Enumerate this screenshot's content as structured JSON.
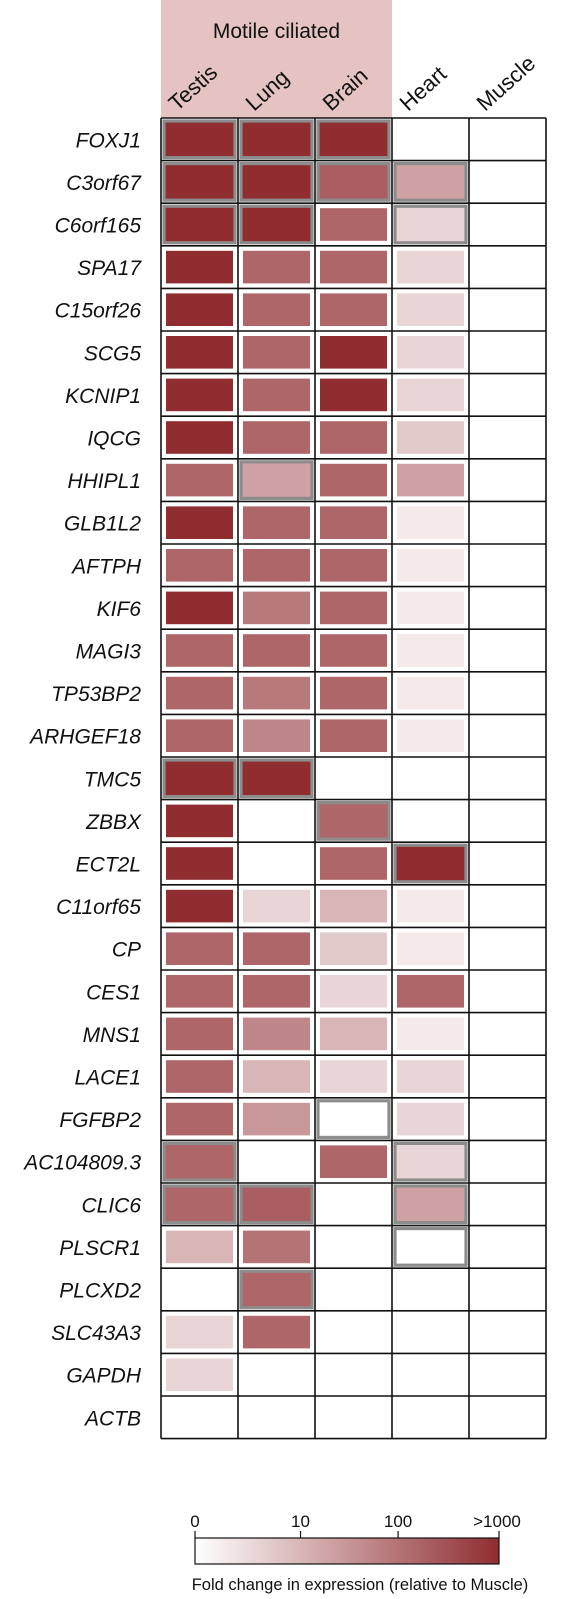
{
  "chart_data": {
    "type": "heatmap",
    "group_label": "Motile ciliated",
    "group_columns": [
      "Testis",
      "Lung",
      "Brain"
    ],
    "columns": [
      "Testis",
      "Lung",
      "Brain",
      "Heart",
      "Muscle"
    ],
    "rows": [
      "FOXJ1",
      "C3orf67",
      "C6orf165",
      "SPA17",
      "C15orf26",
      "SCG5",
      "KCNIP1",
      "IQCG",
      "HHIPL1",
      "GLB1L2",
      "AFTPH",
      "KIF6",
      "MAGI3",
      "TP53BP2",
      "ARHGEF18",
      "TMC5",
      "ZBBX",
      "ECT2L",
      "C11orf65",
      "CP",
      "CES1",
      "MNS1",
      "LACE1",
      "FGFBP2",
      "AC104809.3",
      "CLIC6",
      "PLSCR1",
      "PLCXD2",
      "SLC43A3",
      "GAPDH",
      "ACTB"
    ],
    "values": [
      [
        2000,
        2000,
        2000,
        0,
        0
      ],
      [
        2000,
        2000,
        200,
        20,
        0
      ],
      [
        2000,
        2000,
        150,
        3,
        0
      ],
      [
        2000,
        150,
        150,
        3,
        0
      ],
      [
        2000,
        150,
        150,
        3,
        0
      ],
      [
        2000,
        150,
        2000,
        3,
        0
      ],
      [
        2000,
        150,
        2000,
        3,
        0
      ],
      [
        2000,
        150,
        150,
        5,
        0
      ],
      [
        150,
        20,
        150,
        20,
        0
      ],
      [
        2000,
        150,
        150,
        1,
        0
      ],
      [
        150,
        150,
        150,
        1,
        0
      ],
      [
        2000,
        80,
        150,
        1,
        0
      ],
      [
        150,
        150,
        150,
        1,
        0
      ],
      [
        150,
        80,
        150,
        1,
        0
      ],
      [
        150,
        50,
        150,
        1,
        0
      ],
      [
        2000,
        2000,
        0,
        0,
        0
      ],
      [
        2000,
        0,
        150,
        0,
        0
      ],
      [
        2000,
        0,
        150,
        2000,
        0
      ],
      [
        2000,
        3,
        10,
        1,
        0
      ],
      [
        150,
        150,
        5,
        1,
        0
      ],
      [
        150,
        150,
        3,
        150,
        0
      ],
      [
        150,
        50,
        10,
        1,
        0
      ],
      [
        150,
        10,
        3,
        3,
        0
      ],
      [
        150,
        30,
        0,
        3,
        0
      ],
      [
        150,
        0,
        150,
        3,
        0
      ],
      [
        150,
        200,
        0,
        20,
        0
      ],
      [
        10,
        100,
        0,
        0,
        0
      ],
      [
        0,
        150,
        0,
        0,
        0
      ],
      [
        3,
        150,
        0,
        0,
        0
      ],
      [
        3,
        0,
        0,
        0,
        0
      ],
      [
        0,
        0,
        0,
        0,
        0
      ]
    ],
    "highlighted": [
      [
        0,
        0
      ],
      [
        0,
        1
      ],
      [
        0,
        2
      ],
      [
        1,
        0
      ],
      [
        1,
        1
      ],
      [
        1,
        2
      ],
      [
        1,
        3
      ],
      [
        2,
        0
      ],
      [
        2,
        1
      ],
      [
        2,
        3
      ],
      [
        8,
        1
      ],
      [
        15,
        0
      ],
      [
        15,
        1
      ],
      [
        16,
        2
      ],
      [
        17,
        3
      ],
      [
        23,
        2
      ],
      [
        24,
        0
      ],
      [
        24,
        3
      ],
      [
        25,
        0
      ],
      [
        25,
        1
      ],
      [
        25,
        3
      ],
      [
        26,
        3
      ],
      [
        27,
        1
      ]
    ],
    "colorbar": {
      "tick_labels": [
        "0",
        "10",
        "100",
        ">1000"
      ],
      "tick_values": [
        0,
        10,
        100,
        1000
      ],
      "label": "Fold change in expression (relative to Muscle)",
      "color_low": "#ffffff",
      "color_high": "#8f2d31"
    },
    "group_band_color": "#e6c3c3",
    "highlight_border_color": "#8c8c8c"
  }
}
